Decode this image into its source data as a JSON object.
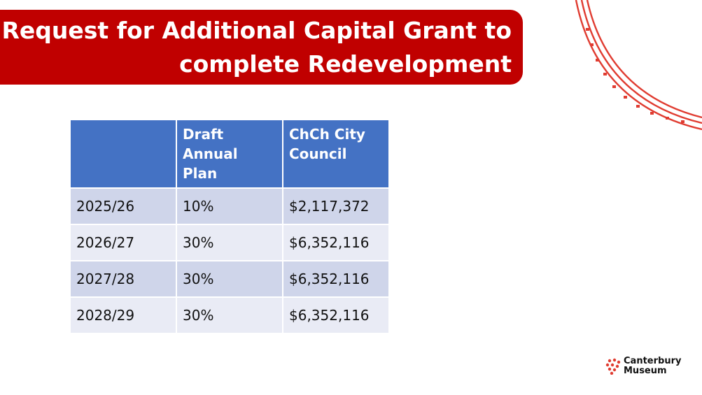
{
  "title": {
    "line1": "Request for Additional Capital Grant to",
    "line2": "complete Redevelopment"
  },
  "table": {
    "headers": [
      "",
      "Draft Annual Plan",
      "ChCh City Council"
    ],
    "rows": [
      [
        "2025/26",
        "10%",
        "$2,117,372"
      ],
      [
        "2026/27",
        "30%",
        "$6,352,116"
      ],
      [
        "2027/28",
        "30%",
        "$6,352,116"
      ],
      [
        "2028/29",
        "30%",
        "$6,352,116"
      ]
    ]
  },
  "logo": {
    "line1": "Canterbury",
    "line2": "Museum"
  },
  "colors": {
    "banner": "#c00000",
    "header": "#4472c4",
    "row_dark": "#cfd5ea",
    "row_light": "#e9ebf5",
    "accent": "#e03c31"
  }
}
